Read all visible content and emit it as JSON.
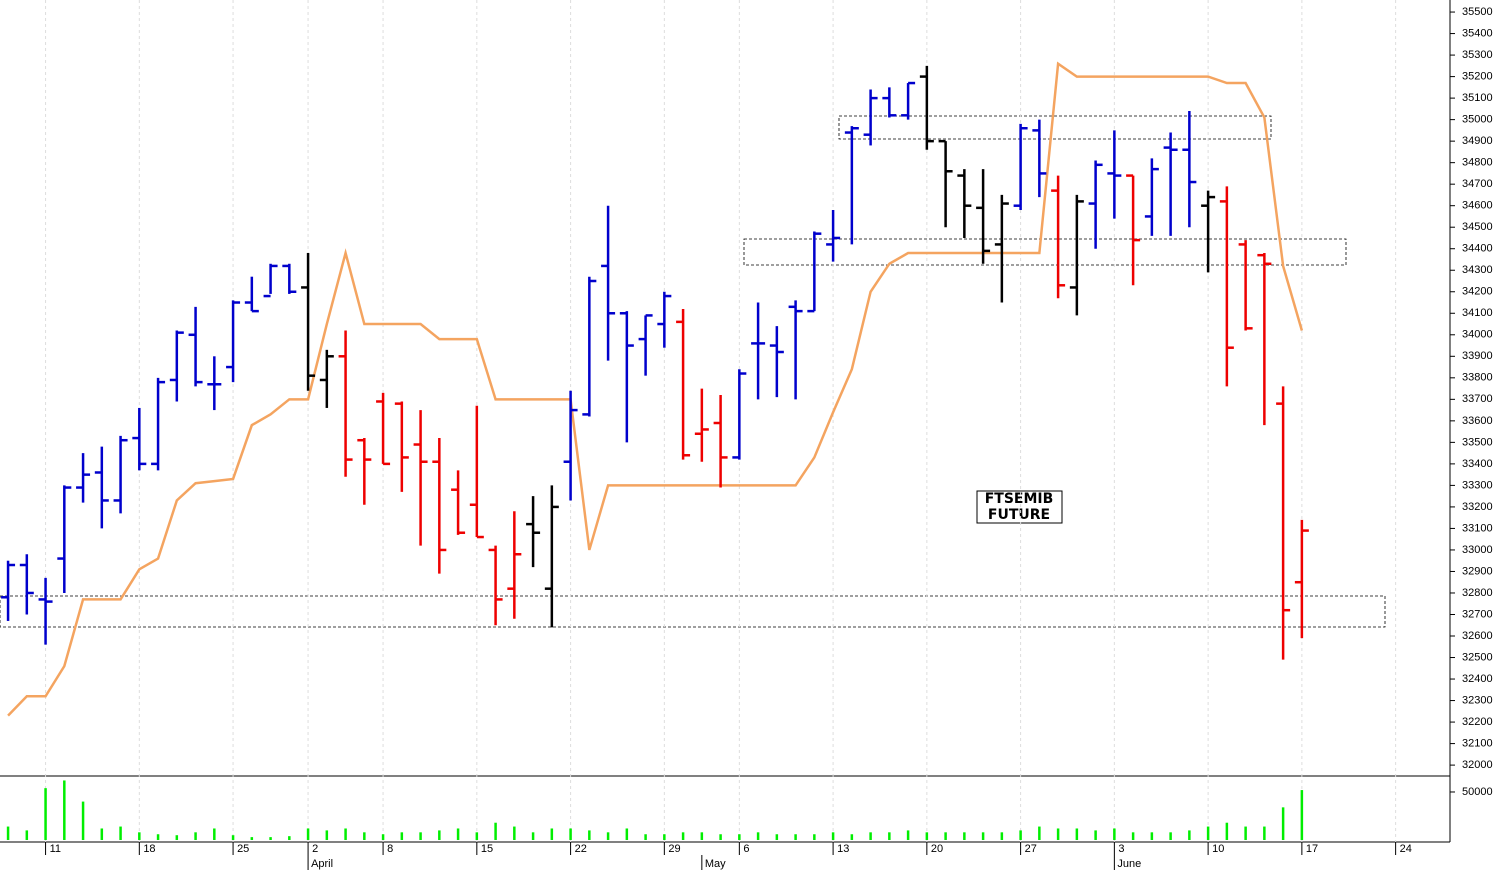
{
  "chart_data": {
    "type": "ohlc",
    "annotation": [
      "FTSEMIB",
      "FUTURE"
    ],
    "open": [
      32780,
      32930,
      32770,
      32960,
      33290,
      33360,
      33230,
      33520,
      33400,
      33790,
      34000,
      33770,
      33850,
      34150,
      34180,
      34320,
      34220,
      33790,
      33900,
      33510,
      33690,
      33680,
      33490,
      33410,
      33280,
      33210,
      33000,
      32820,
      33120,
      32820,
      33410,
      33630,
      34320,
      34100,
      33980,
      34050,
      34060,
      33540,
      33590,
      33430,
      33960,
      33950,
      34130,
      34110,
      34420,
      34940,
      34930,
      35100,
      35020,
      35200,
      34900,
      34740,
      34590,
      34420,
      34600,
      34950,
      34670,
      34220,
      34610,
      34750,
      34740,
      34550,
      34870,
      34860,
      34600,
      34620,
      34420,
      34370,
      33680,
      32850
    ],
    "high": [
      32950,
      32980,
      32870,
      33300,
      33450,
      33480,
      33530,
      33660,
      33800,
      34020,
      34130,
      33900,
      34160,
      34270,
      34330,
      34330,
      34380,
      33930,
      34020,
      33520,
      33730,
      33690,
      33650,
      33520,
      33370,
      33670,
      33020,
      33180,
      33250,
      33300,
      33740,
      34270,
      34600,
      34110,
      34090,
      34200,
      34120,
      33750,
      33720,
      33840,
      34150,
      34040,
      34160,
      34480,
      34580,
      34970,
      35140,
      35150,
      35170,
      35250,
      34900,
      34770,
      34770,
      34650,
      34980,
      35000,
      34740,
      34650,
      34810,
      34950,
      34740,
      34820,
      34940,
      35040,
      34670,
      34690,
      34440,
      34380,
      33760,
      33140
    ],
    "low": [
      32670,
      32700,
      32560,
      32800,
      33220,
      33100,
      33170,
      33370,
      33370,
      33690,
      33760,
      33650,
      33780,
      34110,
      34190,
      34190,
      33740,
      33660,
      33340,
      33210,
      33400,
      33270,
      33020,
      32890,
      33070,
      33060,
      32650,
      32680,
      32920,
      32640,
      33230,
      33620,
      33880,
      33500,
      33810,
      33940,
      33420,
      33410,
      33290,
      33420,
      33700,
      33710,
      33700,
      34110,
      34340,
      34420,
      34880,
      35010,
      35000,
      34860,
      34500,
      34450,
      34330,
      34150,
      34580,
      34640,
      34170,
      34090,
      34400,
      34540,
      34230,
      34460,
      34460,
      34500,
      34290,
      33760,
      34020,
      33580,
      32490,
      32590
    ],
    "close": [
      32930,
      32800,
      32760,
      33290,
      33350,
      33230,
      33510,
      33400,
      33780,
      34010,
      33780,
      33770,
      34150,
      34110,
      34320,
      34200,
      33810,
      33900,
      33420,
      33420,
      33400,
      33430,
      33410,
      33000,
      33080,
      33060,
      32770,
      32980,
      33080,
      33200,
      33650,
      34250,
      34100,
      33950,
      34090,
      34180,
      33440,
      33560,
      33430,
      33820,
      33960,
      33920,
      34110,
      34470,
      34450,
      34960,
      35100,
      35020,
      35170,
      34900,
      34760,
      34600,
      34390,
      34610,
      34960,
      34750,
      34230,
      34620,
      34790,
      34740,
      34440,
      34770,
      34860,
      34710,
      34640,
      33940,
      34030,
      34330,
      32720,
      33090
    ],
    "bar_colors": [
      "#0000cc",
      "#0000cc",
      "#0000cc",
      "#0000cc",
      "#0000cc",
      "#0000cc",
      "#0000cc",
      "#0000cc",
      "#0000cc",
      "#0000cc",
      "#0000cc",
      "#0000cc",
      "#0000cc",
      "#0000cc",
      "#0000cc",
      "#0000cc",
      "#000000",
      "#000000",
      "#ee0000",
      "#ee0000",
      "#ee0000",
      "#ee0000",
      "#ee0000",
      "#ee0000",
      "#ee0000",
      "#ee0000",
      "#ee0000",
      "#ee0000",
      "#000000",
      "#000000",
      "#0000cc",
      "#0000cc",
      "#0000cc",
      "#0000cc",
      "#0000cc",
      "#0000cc",
      "#ee0000",
      "#ee0000",
      "#ee0000",
      "#0000cc",
      "#0000cc",
      "#0000cc",
      "#0000cc",
      "#0000cc",
      "#0000cc",
      "#0000cc",
      "#0000cc",
      "#0000cc",
      "#0000cc",
      "#000000",
      "#000000",
      "#000000",
      "#000000",
      "#000000",
      "#0000cc",
      "#0000cc",
      "#ee0000",
      "#000000",
      "#0000cc",
      "#0000cc",
      "#ee0000",
      "#0000cc",
      "#0000cc",
      "#0000cc",
      "#000000",
      "#ee0000",
      "#ee0000",
      "#ee0000",
      "#ee0000",
      "#ee0000"
    ],
    "stop_line": {
      "color": "#f4a460",
      "values": [
        32230,
        32320,
        32320,
        32460,
        32770,
        32770,
        32770,
        32910,
        32960,
        33230,
        33310,
        33320,
        33330,
        33580,
        33630,
        33700,
        33700,
        34050,
        34380,
        34050,
        34050,
        34050,
        34050,
        33980,
        33980,
        33980,
        33700,
        33700,
        33700,
        33700,
        33700,
        33000,
        33300,
        33300,
        33300,
        33300,
        33300,
        33300,
        33300,
        33300,
        33300,
        33300,
        33300,
        33430,
        33640,
        33840,
        34200,
        34330,
        34380,
        34380,
        34380,
        34380,
        34380,
        34380,
        34380,
        34380,
        35260,
        35200,
        35200,
        35200,
        35200,
        35200,
        35200,
        35200,
        35200,
        35170,
        35170,
        35010,
        34320,
        34020
      ]
    },
    "ylim": [
      31954,
      35556
    ],
    "yticks": [
      32000,
      32100,
      32200,
      32300,
      32400,
      32500,
      32600,
      32700,
      32800,
      32900,
      33000,
      33100,
      33200,
      33300,
      33400,
      33500,
      33600,
      33700,
      33800,
      33900,
      34000,
      34100,
      34200,
      34300,
      34400,
      34500,
      34600,
      34700,
      34800,
      34900,
      35000,
      35100,
      35200,
      35300,
      35400,
      35500
    ],
    "xlim": [
      -0.43,
      76.9
    ],
    "xticks": [
      {
        "value": 2,
        "label": "11"
      },
      {
        "value": 7,
        "label": "18"
      },
      {
        "value": 12,
        "label": "25"
      },
      {
        "value": 16,
        "label": "2"
      },
      {
        "value": 20,
        "label": "8"
      },
      {
        "value": 25,
        "label": "15"
      },
      {
        "value": 30,
        "label": "22"
      },
      {
        "value": 35,
        "label": "29"
      },
      {
        "value": 39,
        "label": "6"
      },
      {
        "value": 44,
        "label": "13"
      },
      {
        "value": 49,
        "label": "20"
      },
      {
        "value": 54,
        "label": "27"
      },
      {
        "value": 59,
        "label": "3"
      },
      {
        "value": 64,
        "label": "10"
      },
      {
        "value": 69,
        "label": "17"
      },
      {
        "value": 74,
        "label": "24"
      }
    ],
    "month_ticks": [
      {
        "value": 16,
        "label": "April"
      },
      {
        "value": 37,
        "label": "May"
      },
      {
        "value": 59,
        "label": "June"
      }
    ],
    "volume": {
      "color": "#00ee00",
      "ylim": [
        0,
        65600
      ],
      "yticks": [
        50000
      ],
      "values": [
        14000,
        10000,
        54000,
        62000,
        40000,
        12000,
        14000,
        8000,
        6000,
        5000,
        8000,
        12000,
        5000,
        3000,
        3000,
        4000,
        12000,
        10000,
        12000,
        8000,
        6000,
        8000,
        8000,
        10000,
        12000,
        8000,
        18000,
        14000,
        8000,
        12000,
        12000,
        10000,
        8000,
        12000,
        6000,
        6000,
        8000,
        8000,
        6000,
        6000,
        8000,
        6000,
        6000,
        6000,
        8000,
        6000,
        8000,
        8000,
        10000,
        8000,
        8000,
        8000,
        8000,
        8000,
        10000,
        14000,
        12000,
        12000,
        10000,
        12000,
        8000,
        8000,
        8000,
        10000,
        14000,
        18000,
        14000,
        14000,
        34000,
        52000
      ]
    }
  }
}
